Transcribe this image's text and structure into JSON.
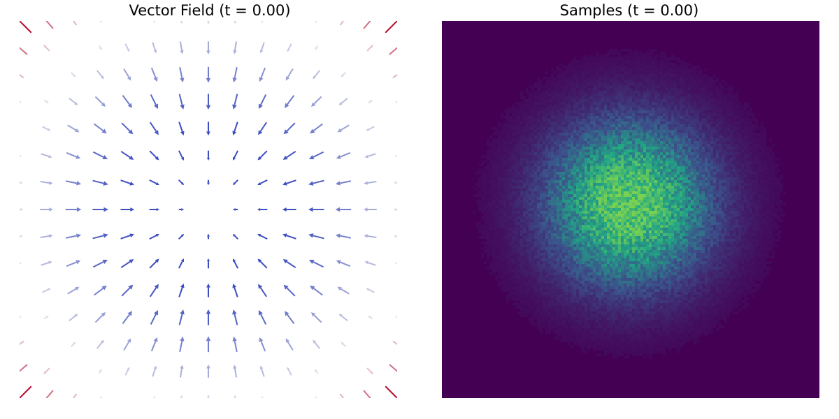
{
  "chart_data": [
    {
      "type": "quiver",
      "title": "Vector Field (t = 0.00)",
      "axes_visible": false,
      "grid": false,
      "xlim": [
        -3,
        3
      ],
      "ylim": [
        -3,
        3
      ],
      "grid_points_per_axis": 15,
      "field": "u = -x*(1 - 0.09*(x^2+y^2)), v = -y*(1 - 0.09*(x^2+y^2))",
      "colormap": "coolwarm",
      "colors": {
        "low": "#3b4cc0",
        "mid": "#dddddd",
        "high": "#b40426"
      }
    },
    {
      "type": "heatmap",
      "title": "Samples (t = 0.00)",
      "axes_visible": false,
      "grid": false,
      "distribution": "2D standard normal",
      "mean": [
        0,
        0
      ],
      "std": 1,
      "xlim": [
        -3.5,
        3.5
      ],
      "ylim": [
        -3.5,
        3.5
      ],
      "colormap": "viridis",
      "colors": {
        "background": "#440154",
        "mid": "#3b528b",
        "high": "#21a685",
        "peak": "#7ad151"
      }
    }
  ]
}
